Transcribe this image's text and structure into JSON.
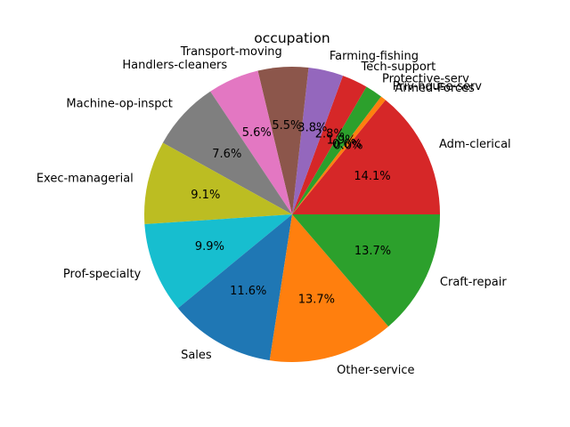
{
  "chart_data": {
    "type": "pie",
    "title": "occupation",
    "start_angle_deg": 0,
    "direction": "counterclockwise",
    "categories": [
      "Adm-clerical",
      "Armed-Forces",
      "Priv-house-serv",
      "Protective-serv",
      "Tech-support",
      "Farming-fishing",
      "Transport-moving",
      "Handlers-cleaners",
      "Machine-op-inspct",
      "Exec-managerial",
      "Prof-specialty",
      "Sales",
      "Other-service",
      "Craft-repair"
    ],
    "values": [
      14.1,
      0.0,
      0.6,
      1.9,
      2.8,
      3.8,
      5.5,
      5.6,
      7.6,
      9.1,
      9.9,
      11.6,
      13.7,
      13.7
    ],
    "pct_labels": [
      "14.1%",
      "0.0%",
      "0.6%",
      "1.9%",
      "2.8%",
      "3.8%",
      "5.5%",
      "5.6%",
      "7.6%",
      "9.1%",
      "9.9%",
      "11.6%",
      "13.7%",
      "13.7%"
    ],
    "colors": [
      "#d62728",
      "#1f77b4",
      "#ff7f0e",
      "#2ca02c",
      "#d62728",
      "#9467bd",
      "#8c564b",
      "#e377c2",
      "#7f7f7f",
      "#bcbd22",
      "#17becf",
      "#1f77b4",
      "#ff7f0e",
      "#2ca02c"
    ]
  }
}
